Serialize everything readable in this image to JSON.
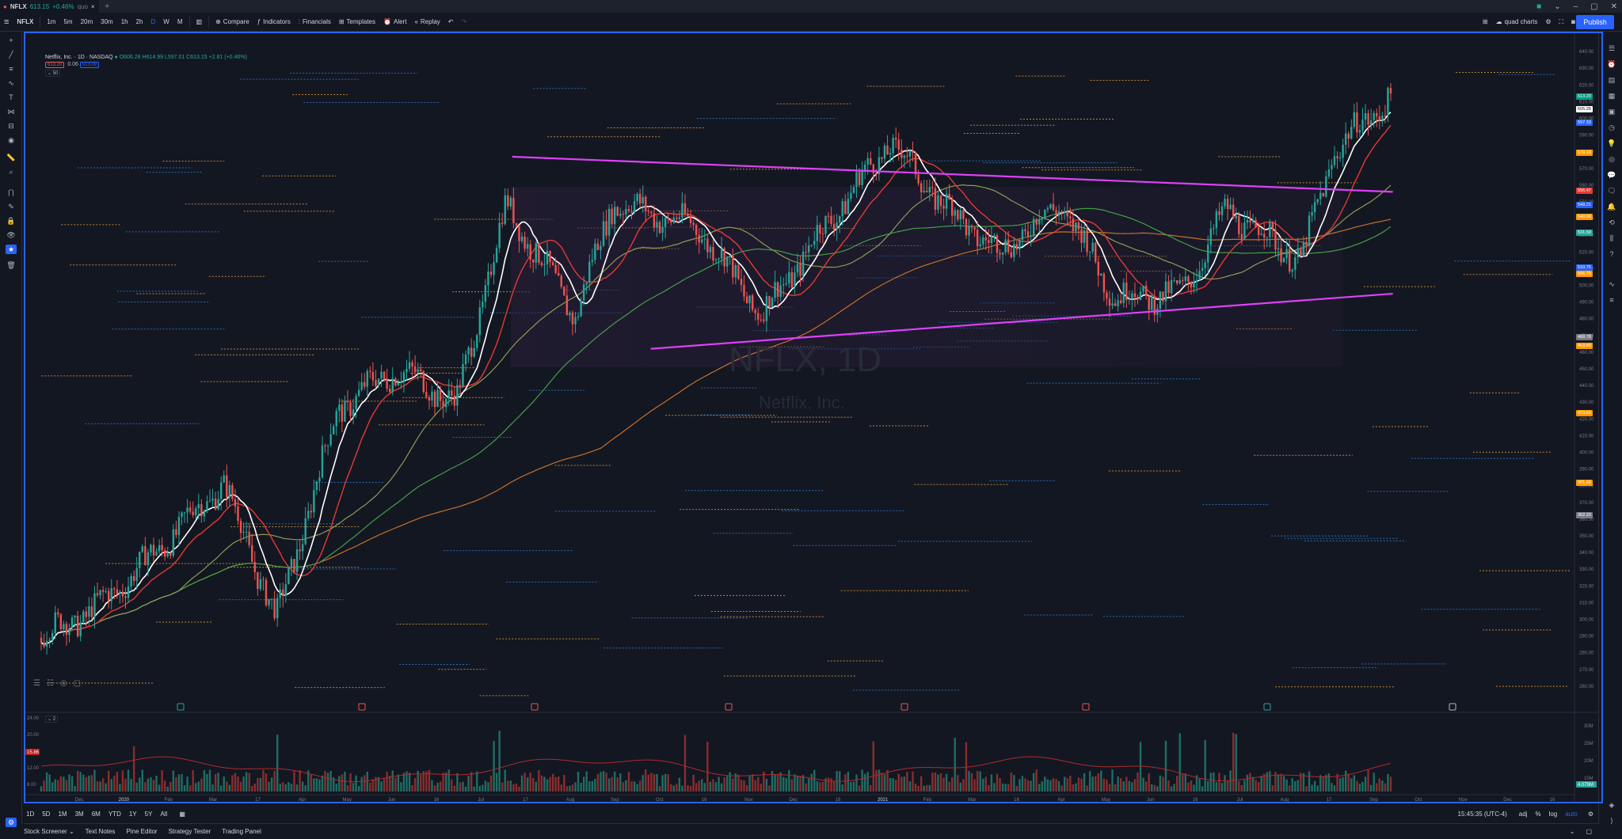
{
  "tab": {
    "symbol": "NFLX",
    "price": "613.15",
    "change": "+0.46%",
    "suffix": "quo",
    "close": "×"
  },
  "toolbar": {
    "symbol": "NFLX",
    "intervals": [
      "1m",
      "5m",
      "20m",
      "30m",
      "1h",
      "2h",
      "D",
      "W",
      "M"
    ],
    "compare": "Compare",
    "indicators": "Indicators",
    "financials": "Financials",
    "templates": "Templates",
    "alert": "Alert",
    "replay": "Replay",
    "layout_name": "quad charts",
    "publish": "Publish"
  },
  "legend": {
    "title": "Netflix, Inc. · 1D · NASDAQ",
    "ohlc": "O606.28 H614.99 L597.01 C613.15 +2.81 (+0.46%)",
    "badge1": "613.20",
    "badge2": "0.06",
    "badge3": "613.09",
    "indicator": "50"
  },
  "watermark": {
    "symbol": "NFLX, 1D",
    "name": "Netflix, Inc."
  },
  "volume_legend": {
    "indicator": "2"
  },
  "colors": {
    "up": "#26a69a",
    "down": "#ef5350",
    "triangle": "#e040fb",
    "ema_fast": "#ffffff",
    "ma_red": "#e53935",
    "ma_olive": "#8f9a55",
    "ma_green": "#43a047",
    "ma_orange": "#c5702b",
    "hvn_orange": "#e5a03c",
    "hvn_blue": "#2d7fd6",
    "frame": "#2962ff"
  },
  "chart_data": {
    "type": "line",
    "symbol": "NFLX",
    "title": "Netflix, Inc. · 1D · NASDAQ",
    "price_scale": {
      "min": 250,
      "max": 650
    },
    "y_ticks": [
      260,
      270,
      280,
      290,
      300,
      310,
      320,
      330,
      340,
      350,
      360,
      370,
      380,
      390,
      400,
      410,
      420,
      430,
      440,
      450,
      460,
      470,
      480,
      490,
      500,
      510,
      520,
      530,
      540,
      550,
      560,
      570,
      580,
      590,
      600,
      610,
      620,
      630,
      640
    ],
    "x_ticks": [
      "Dec",
      "2020",
      "Feb",
      "Mar",
      "17",
      "Apr",
      "May",
      "Jun",
      "16",
      "Jul",
      "17",
      "Aug",
      "Sep",
      "Oct",
      "16",
      "Nov",
      "Dec",
      "16",
      "2021",
      "Feb",
      "Mar",
      "16",
      "Apr",
      "May",
      "Jun",
      "16",
      "Jul",
      "Aug",
      "17",
      "Sep",
      "Oct",
      "Nov",
      "Dec",
      "16"
    ],
    "series": [
      {
        "name": "NFLX close",
        "values": [
          {
            "x": "2019-11-18",
            "y": 289
          },
          {
            "x": "2019-12-16",
            "y": 307
          },
          {
            "x": "2020-01-13",
            "y": 338
          },
          {
            "x": "2020-02-18",
            "y": 382
          },
          {
            "x": "2020-03-16",
            "y": 300
          },
          {
            "x": "2020-04-16",
            "y": 426
          },
          {
            "x": "2020-05-15",
            "y": 450
          },
          {
            "x": "2020-06-15",
            "y": 430
          },
          {
            "x": "2020-07-10",
            "y": 548
          },
          {
            "x": "2020-08-14",
            "y": 482
          },
          {
            "x": "2020-09-02",
            "y": 550
          },
          {
            "x": "2020-10-16",
            "y": 534
          },
          {
            "x": "2020-11-16",
            "y": 482
          },
          {
            "x": "2020-12-16",
            "y": 532
          },
          {
            "x": "2021-01-20",
            "y": 586
          },
          {
            "x": "2021-02-16",
            "y": 548
          },
          {
            "x": "2021-03-16",
            "y": 520
          },
          {
            "x": "2021-04-16",
            "y": 549
          },
          {
            "x": "2021-05-14",
            "y": 493
          },
          {
            "x": "2021-06-16",
            "y": 495
          },
          {
            "x": "2021-07-09",
            "y": 545
          },
          {
            "x": "2021-08-16",
            "y": 515
          },
          {
            "x": "2021-09-01",
            "y": 580
          },
          {
            "x": "2021-09-30",
            "y": 613.15
          }
        ]
      }
    ],
    "overlays": [
      {
        "name": "upper trendline",
        "points": [
          {
            "x": "2020-07-13",
            "y": 577
          },
          {
            "x": "2021-10-01",
            "y": 556
          }
        ]
      },
      {
        "name": "lower trendline",
        "points": [
          {
            "x": "2020-09-21",
            "y": 462
          },
          {
            "x": "2021-10-01",
            "y": 495
          }
        ]
      }
    ],
    "price_labels": [
      {
        "value": "613.20",
        "color": "#089981"
      },
      {
        "value": "605.28",
        "color": "#ffffff"
      },
      {
        "value": "597.33",
        "color": "#2962ff"
      },
      {
        "value": "579.18",
        "color": "#ff9800"
      },
      {
        "value": "556.47",
        "color": "#e53935"
      },
      {
        "value": "548.21",
        "color": "#2962ff"
      },
      {
        "value": "540.98",
        "color": "#ff9800"
      },
      {
        "value": "531.59",
        "color": "#26a69a"
      },
      {
        "value": "510.75",
        "color": "#2962ff"
      },
      {
        "value": "506.79",
        "color": "#ff9800"
      },
      {
        "value": "468.78",
        "color": "#787b86"
      },
      {
        "value": "463.60",
        "color": "#ff9800"
      },
      {
        "value": "423.60",
        "color": "#ff9800"
      },
      {
        "value": "381.66",
        "color": "#ff9800"
      },
      {
        "value": "362.20",
        "color": "#787b86"
      }
    ],
    "volume": {
      "y_ticks": [
        "24.00",
        "20.00",
        "16.00",
        "12.00",
        "8.00"
      ],
      "last_value": "4.079M",
      "badge": "15.86",
      "right_ticks": [
        "30M",
        "25M",
        "20M",
        "15M"
      ]
    }
  },
  "bottom": {
    "ranges": [
      "1D",
      "5D",
      "1M",
      "3M",
      "6M",
      "YTD",
      "1Y",
      "5Y",
      "All"
    ],
    "clock": "15:45:35 (UTC-4)",
    "scale_opts": [
      "adj",
      "%",
      "log",
      "auto"
    ],
    "panels": [
      "Stock Screener",
      "Text Notes",
      "Pine Editor",
      "Strategy Tester",
      "Trading Panel"
    ]
  }
}
